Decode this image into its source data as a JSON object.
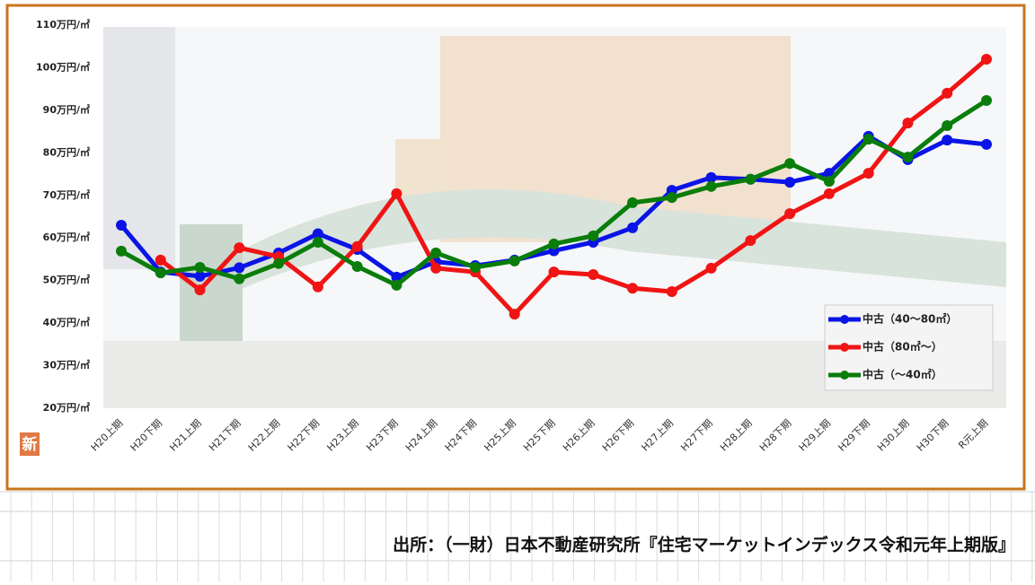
{
  "chart_data": {
    "type": "line",
    "categories": [
      "H20上期",
      "H20下期",
      "H21上期",
      "H21下期",
      "H22上期",
      "H22下期",
      "H23上期",
      "H23下期",
      "H24上期",
      "H24下期",
      "H25上期",
      "H25下期",
      "H26上期",
      "H26下期",
      "H27上期",
      "H27下期",
      "H28上期",
      "H28下期",
      "H29上期",
      "H29下期",
      "H30上期",
      "H30下期",
      "R元上期"
    ],
    "series": [
      {
        "name": "中古（40～80㎡）",
        "color": "#0a14e6",
        "values": [
          63,
          52,
          51,
          53,
          56.5,
          61,
          57.3,
          50.8,
          54.4,
          53.5,
          54.8,
          57,
          59,
          62.4,
          71.2,
          74.2,
          73.8,
          73.1,
          75.2,
          83.9,
          78.4,
          83,
          82
        ]
      },
      {
        "name": "中古（80㎡～）",
        "color": "#f01414",
        "values": [
          null,
          54.8,
          47.8,
          57.7,
          55.6,
          48.5,
          58,
          70.4,
          52.9,
          52,
          42.1,
          52,
          51.4,
          48.2,
          47.4,
          52.9,
          59.4,
          65.7,
          70.4,
          75.2,
          87,
          94,
          102
        ]
      },
      {
        "name": "中古（～40㎡）",
        "color": "#0a7d0a",
        "values": [
          56.9,
          51.8,
          53.1,
          50.4,
          54,
          59,
          53.3,
          48.9,
          56.5,
          53.1,
          54.6,
          58.6,
          60.5,
          68.3,
          69.5,
          72.1,
          73.8,
          77.5,
          73.3,
          83.2,
          79,
          86.4,
          92.3
        ]
      }
    ],
    "ylim": [
      20,
      110
    ],
    "yticks": [
      {
        "value": 20,
        "label": "20万円/㎡"
      },
      {
        "value": 30,
        "label": "30万円/㎡"
      },
      {
        "value": 40,
        "label": "40万円/㎡"
      },
      {
        "value": 50,
        "label": "50万円/㎡"
      },
      {
        "value": 60,
        "label": "60万円/㎡"
      },
      {
        "value": 70,
        "label": "70万円/㎡"
      },
      {
        "value": 80,
        "label": "80万円/㎡"
      },
      {
        "value": 90,
        "label": "90万円/㎡"
      },
      {
        "value": 100,
        "label": "100万円/㎡"
      },
      {
        "value": 110,
        "label": "110万円/㎡"
      }
    ],
    "legend": "lower right",
    "grid": false
  },
  "badge": "新",
  "source": "出所：（一財）日本不動産研究所『住宅マーケットインデックス令和元年上期版』"
}
